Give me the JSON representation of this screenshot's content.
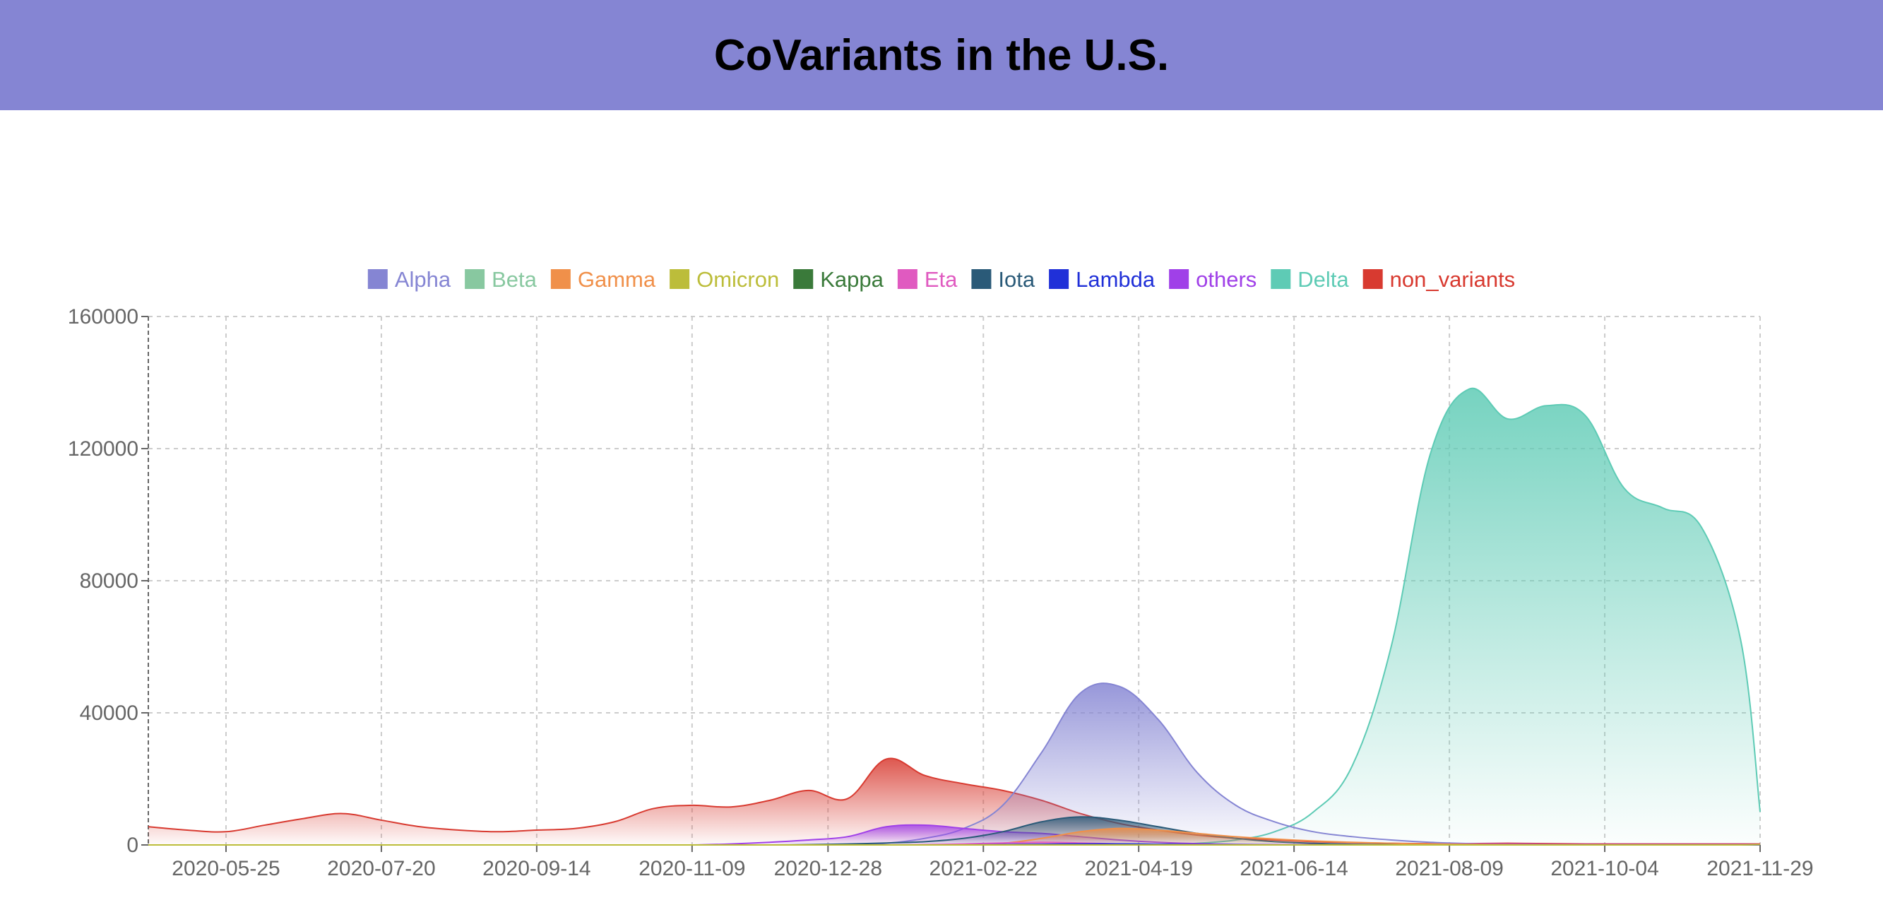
{
  "header": {
    "title": "CoVariants in the U.S."
  },
  "colors": {
    "header_bg": "#8585d3"
  },
  "chart_data": {
    "type": "area",
    "title": "CoVariants in the U.S.",
    "xlabel": "",
    "ylabel": "",
    "ylim": [
      0,
      160000
    ],
    "yticks": [
      0,
      40000,
      80000,
      120000,
      160000
    ],
    "xticks": [
      "2020-05-25",
      "2020-07-20",
      "2020-09-14",
      "2020-11-09",
      "2020-12-28",
      "2021-02-22",
      "2021-04-19",
      "2021-06-14",
      "2021-08-09",
      "2021-10-04",
      "2021-11-29"
    ],
    "grid": true,
    "legend": "top-center",
    "x": [
      "2020-04-27",
      "2020-05-11",
      "2020-05-25",
      "2020-06-08",
      "2020-06-22",
      "2020-07-06",
      "2020-07-20",
      "2020-08-03",
      "2020-08-17",
      "2020-08-31",
      "2020-09-14",
      "2020-09-28",
      "2020-10-12",
      "2020-10-26",
      "2020-11-09",
      "2020-11-23",
      "2020-12-07",
      "2020-12-21",
      "2021-01-04",
      "2021-01-18",
      "2021-02-01",
      "2021-02-15",
      "2021-03-01",
      "2021-03-15",
      "2021-03-29",
      "2021-04-12",
      "2021-04-26",
      "2021-05-10",
      "2021-05-24",
      "2021-06-07",
      "2021-06-21",
      "2021-07-05",
      "2021-07-19",
      "2021-08-02",
      "2021-08-16",
      "2021-08-30",
      "2021-09-13",
      "2021-09-27",
      "2021-10-11",
      "2021-10-25",
      "2021-11-08",
      "2021-11-22",
      "2021-12-06"
    ],
    "series": [
      {
        "name": "Alpha",
        "color": "#8585d3",
        "values": [
          0,
          0,
          0,
          0,
          0,
          0,
          0,
          0,
          0,
          0,
          0,
          0,
          0,
          0,
          0,
          0,
          0,
          0,
          0,
          500,
          2000,
          5000,
          12000,
          28000,
          46000,
          48000,
          38000,
          22000,
          12000,
          7000,
          4000,
          2500,
          1500,
          800,
          400,
          200,
          100,
          50,
          0,
          0,
          0,
          0,
          0
        ]
      },
      {
        "name": "Beta",
        "color": "#88c8a0",
        "values": [
          0,
          0,
          0,
          0,
          0,
          0,
          0,
          0,
          0,
          0,
          0,
          0,
          0,
          0,
          0,
          0,
          0,
          0,
          0,
          0,
          0,
          0,
          100,
          200,
          300,
          300,
          200,
          100,
          50,
          0,
          0,
          0,
          0,
          0,
          0,
          0,
          0,
          0,
          0,
          0,
          0,
          0,
          0
        ]
      },
      {
        "name": "Gamma",
        "color": "#f0904a",
        "values": [
          0,
          0,
          0,
          0,
          0,
          0,
          0,
          0,
          0,
          0,
          0,
          0,
          0,
          0,
          0,
          0,
          0,
          0,
          0,
          0,
          0,
          100,
          500,
          2000,
          4000,
          5000,
          4500,
          3500,
          2500,
          1800,
          1200,
          800,
          500,
          300,
          200,
          100,
          50,
          0,
          0,
          0,
          0,
          0,
          0
        ]
      },
      {
        "name": "Omicron",
        "color": "#bcbd3a",
        "values": [
          0,
          0,
          0,
          0,
          0,
          0,
          0,
          0,
          0,
          0,
          0,
          0,
          0,
          0,
          0,
          0,
          0,
          0,
          0,
          0,
          0,
          0,
          0,
          0,
          0,
          0,
          0,
          0,
          0,
          0,
          0,
          0,
          0,
          0,
          0,
          0,
          0,
          0,
          0,
          0,
          0,
          0,
          100
        ]
      },
      {
        "name": "Kappa",
        "color": "#3a7a3a",
        "values": [
          0,
          0,
          0,
          0,
          0,
          0,
          0,
          0,
          0,
          0,
          0,
          0,
          0,
          0,
          0,
          0,
          0,
          0,
          0,
          0,
          0,
          0,
          0,
          0,
          50,
          100,
          100,
          50,
          0,
          0,
          0,
          0,
          0,
          0,
          0,
          0,
          0,
          0,
          0,
          0,
          0,
          0,
          0
        ]
      },
      {
        "name": "Eta",
        "color": "#e05ac0",
        "values": [
          0,
          0,
          0,
          0,
          0,
          0,
          0,
          0,
          0,
          0,
          0,
          0,
          0,
          0,
          0,
          0,
          0,
          0,
          0,
          0,
          100,
          300,
          600,
          800,
          600,
          300,
          100,
          0,
          0,
          0,
          0,
          0,
          0,
          0,
          0,
          0,
          0,
          0,
          0,
          0,
          0,
          0,
          0
        ]
      },
      {
        "name": "Iota",
        "color": "#2a5a78",
        "values": [
          0,
          0,
          0,
          0,
          0,
          0,
          0,
          0,
          0,
          0,
          0,
          0,
          0,
          0,
          0,
          0,
          0,
          100,
          300,
          600,
          1000,
          2000,
          4000,
          7000,
          8500,
          7500,
          5500,
          3500,
          2000,
          1000,
          500,
          200,
          100,
          0,
          0,
          0,
          0,
          0,
          0,
          0,
          0,
          0,
          0
        ]
      },
      {
        "name": "Lambda",
        "color": "#2030d8",
        "values": [
          0,
          0,
          0,
          0,
          0,
          0,
          0,
          0,
          0,
          0,
          0,
          0,
          0,
          0,
          0,
          0,
          0,
          0,
          0,
          0,
          0,
          0,
          100,
          200,
          300,
          300,
          200,
          100,
          50,
          0,
          0,
          0,
          0,
          0,
          0,
          0,
          0,
          0,
          0,
          0,
          0,
          0,
          0
        ]
      },
      {
        "name": "others",
        "color": "#a040e8",
        "values": [
          0,
          0,
          0,
          0,
          0,
          0,
          0,
          0,
          0,
          0,
          0,
          0,
          0,
          0,
          0,
          300,
          800,
          1500,
          2500,
          5500,
          6000,
          5000,
          4000,
          3500,
          2500,
          1500,
          800,
          400,
          200,
          100,
          100,
          100,
          100,
          200,
          300,
          300,
          200,
          100,
          100,
          100,
          100,
          100,
          100
        ]
      },
      {
        "name": "Delta",
        "color": "#5ecbb5",
        "values": [
          0,
          0,
          0,
          0,
          0,
          0,
          0,
          0,
          0,
          0,
          0,
          0,
          0,
          0,
          0,
          0,
          0,
          0,
          0,
          0,
          0,
          0,
          0,
          0,
          0,
          0,
          100,
          500,
          1500,
          4000,
          10000,
          24000,
          60000,
          118000,
          138000,
          129000,
          133000,
          130000,
          108000,
          102000,
          96000,
          62000,
          10000
        ]
      },
      {
        "name": "non_variants",
        "color": "#d83a30",
        "values": [
          5500,
          4500,
          4000,
          6000,
          8000,
          9500,
          7500,
          5500,
          4500,
          4000,
          4500,
          5000,
          7000,
          11000,
          12000,
          11500,
          13500,
          16500,
          14000,
          26000,
          21000,
          18500,
          16500,
          13500,
          9500,
          6500,
          4500,
          3000,
          2000,
          1500,
          1000,
          700,
          500,
          400,
          400,
          500,
          400,
          300,
          300,
          300,
          300,
          300,
          300
        ]
      }
    ]
  }
}
